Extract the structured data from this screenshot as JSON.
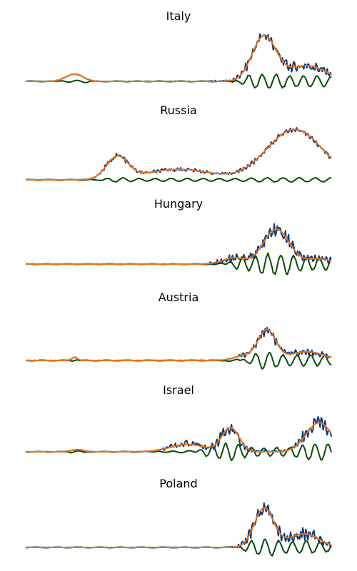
{
  "chart_data": [
    {
      "type": "line",
      "title": "Italy",
      "xlabel": "",
      "ylabel": "",
      "ylim": [
        0,
        1
      ],
      "grid": false,
      "series_colors": {
        "raw": "#0b3a7a",
        "smooth": "#e8741c",
        "residual": "#0a4a0a"
      },
      "smooth_bumps": [
        {
          "c": 0.16,
          "w": 0.04,
          "a": 0.13
        },
        {
          "c": 0.78,
          "w": 0.055,
          "a": 0.8
        },
        {
          "c": 0.92,
          "w": 0.09,
          "a": 0.28
        }
      ],
      "noise_raw": {
        "start": 0.6,
        "amp": 0.07
      },
      "residual": {
        "start": 0.68,
        "amp": 0.14,
        "freq": 140
      }
    },
    {
      "type": "line",
      "title": "Russia",
      "xlabel": "",
      "ylabel": "",
      "ylim": [
        0,
        1
      ],
      "grid": false,
      "series_colors": {
        "raw": "#0b3a7a",
        "smooth": "#e8741c",
        "residual": "#0a4a0a"
      },
      "smooth_bumps": [
        {
          "c": 0.3,
          "w": 0.05,
          "a": 0.38
        },
        {
          "c": 0.5,
          "w": 0.15,
          "a": 0.18
        },
        {
          "c": 0.88,
          "w": 0.13,
          "a": 0.86
        }
      ],
      "noise_raw": {
        "start": 0.22,
        "amp": 0.03
      },
      "residual": {
        "start": 0.22,
        "amp": 0.04,
        "freq": 120
      }
    },
    {
      "type": "line",
      "title": "Hungary",
      "xlabel": "",
      "ylabel": "",
      "ylim": [
        0,
        1
      ],
      "grid": false,
      "series_colors": {
        "raw": "#0b3a7a",
        "smooth": "#e8741c",
        "residual": "#0a4a0a"
      },
      "smooth_bumps": [
        {
          "c": 0.68,
          "w": 0.05,
          "a": 0.12
        },
        {
          "c": 0.82,
          "w": 0.06,
          "a": 0.68
        },
        {
          "c": 0.96,
          "w": 0.06,
          "a": 0.1
        }
      ],
      "noise_raw": {
        "start": 0.6,
        "amp": 0.1
      },
      "residual": {
        "start": 0.65,
        "amp": 0.22,
        "freq": 150
      }
    },
    {
      "type": "line",
      "title": "Austria",
      "xlabel": "",
      "ylabel": "",
      "ylim": [
        0,
        1
      ],
      "grid": false,
      "series_colors": {
        "raw": "#0b3a7a",
        "smooth": "#e8741c",
        "residual": "#0a4a0a"
      },
      "smooth_bumps": [
        {
          "c": 0.16,
          "w": 0.012,
          "a": 0.06
        },
        {
          "c": 0.72,
          "w": 0.05,
          "a": 0.09
        },
        {
          "c": 0.79,
          "w": 0.04,
          "a": 0.55
        },
        {
          "c": 0.92,
          "w": 0.08,
          "a": 0.16
        }
      ],
      "noise_raw": {
        "start": 0.7,
        "amp": 0.07
      },
      "residual": {
        "start": 0.7,
        "amp": 0.16,
        "freq": 140
      }
    },
    {
      "type": "line",
      "title": "Israel",
      "xlabel": "",
      "ylabel": "",
      "ylim": [
        0,
        1
      ],
      "grid": false,
      "series_colors": {
        "raw": "#0b3a7a",
        "smooth": "#e8741c",
        "residual": "#0a4a0a"
      },
      "smooth_bumps": [
        {
          "c": 0.17,
          "w": 0.03,
          "a": 0.04
        },
        {
          "c": 0.53,
          "w": 0.08,
          "a": 0.14
        },
        {
          "c": 0.67,
          "w": 0.04,
          "a": 0.45
        },
        {
          "c": 0.96,
          "w": 0.06,
          "a": 0.55
        }
      ],
      "noise_raw": {
        "start": 0.45,
        "amp": 0.09
      },
      "residual": {
        "start": 0.55,
        "amp": 0.18,
        "freq": 150
      }
    },
    {
      "type": "line",
      "title": "Poland",
      "xlabel": "",
      "ylabel": "",
      "ylim": [
        0,
        1
      ],
      "grid": false,
      "series_colors": {
        "raw": "#0b3a7a",
        "smooth": "#e8741c",
        "residual": "#0a4a0a"
      },
      "smooth_bumps": [
        {
          "c": 0.78,
          "w": 0.045,
          "a": 0.72
        },
        {
          "c": 0.91,
          "w": 0.07,
          "a": 0.25
        }
      ],
      "noise_raw": {
        "start": 0.65,
        "amp": 0.1
      },
      "residual": {
        "start": 0.68,
        "amp": 0.16,
        "freq": 140
      }
    }
  ]
}
